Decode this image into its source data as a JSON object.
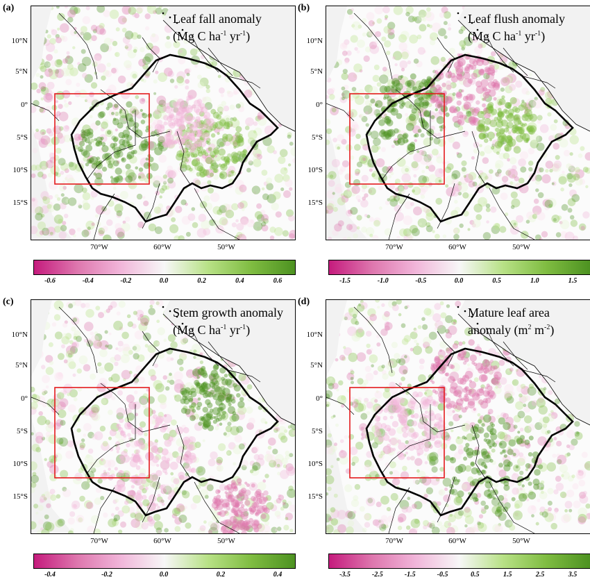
{
  "panels": [
    {
      "letter": "(a)",
      "title_line1": "Leaf fall anomaly",
      "title_line2_pre": "(Mg C ha",
      "title_line2_sup1": "-1",
      "title_line2_mid": " yr",
      "title_line2_sup2": "-1",
      "title_line2_post": ")",
      "cbar_ticks": [
        "-0.6",
        "-0.4",
        "-0.2",
        "0.0",
        "0.2",
        "0.4",
        "0.6"
      ]
    },
    {
      "letter": "(b)",
      "title_line1": "Leaf flush anomaly",
      "title_line2_pre": "(Mg C ha",
      "title_line2_sup1": "-1",
      "title_line2_mid": " yr",
      "title_line2_sup2": "-1",
      "title_line2_post": ")",
      "cbar_ticks": [
        "-1.5",
        "-1.0",
        "-0.5",
        "0.0",
        "0.5",
        "1.0",
        "1.5"
      ]
    },
    {
      "letter": "(c)",
      "title_line1": "Stem growth anomaly",
      "title_line2_pre": "(Mg C ha",
      "title_line2_sup1": "-1",
      "title_line2_mid": " yr",
      "title_line2_sup2": "-1",
      "title_line2_post": ")",
      "cbar_ticks": [
        "-0.4",
        "-0.2",
        "0.0",
        "0.2",
        "0.4"
      ]
    },
    {
      "letter": "(d)",
      "title_line1": "Mature leaf area",
      "title_line2_pre": "anomaly (m",
      "title_line2_sup1": "2",
      "title_line2_mid": " m",
      "title_line2_sup2": "-2",
      "title_line2_post": ")",
      "cbar_ticks": [
        "-3.5",
        "-2.5",
        "-1.5",
        "-0.5",
        "0.5",
        "1.5",
        "2.5",
        "3.5"
      ]
    }
  ],
  "lat_labels": [
    "10°N",
    "5°N",
    "0°",
    "5°S",
    "10°S",
    "15°S"
  ],
  "lon_labels": [
    "70°W",
    "60°W",
    "50°W"
  ],
  "colors": {
    "negative": "#c51b7d",
    "neutral": "#f7f7f7",
    "positive": "#4d9221",
    "box": "#e41a1c",
    "ocean": "#f2f2f2"
  }
}
